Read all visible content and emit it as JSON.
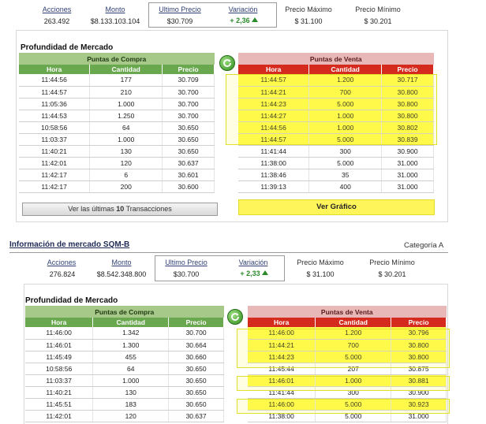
{
  "top": {
    "summary": {
      "labels": [
        "Acciones",
        "Monto",
        "Ultimo Precio",
        "Variación",
        "Precio Máximo",
        "Precio Mínimo"
      ],
      "values": [
        "263.492",
        "$8.133.103.104",
        "$30.709",
        "+ 2,36",
        "$ 31.100",
        "$ 30.201"
      ]
    },
    "depth_title": "Profundidad de Mercado",
    "buy_title": "Puntas de Compra",
    "sell_title": "Puntas de Venta",
    "cols": [
      "Hora",
      "Cantidad",
      "Precio"
    ],
    "buy_rows": [
      [
        "11:44:56",
        "177",
        "30.709"
      ],
      [
        "11:44:57",
        "210",
        "30.700"
      ],
      [
        "11:05:36",
        "1.000",
        "30.700"
      ],
      [
        "11:44:53",
        "1.250",
        "30.700"
      ],
      [
        "10:58:56",
        "64",
        "30.650"
      ],
      [
        "11:03:37",
        "1.000",
        "30.650"
      ],
      [
        "11:40:21",
        "130",
        "30.650"
      ],
      [
        "11:42:01",
        "120",
        "30.637"
      ],
      [
        "11:42:17",
        "6",
        "30.601"
      ],
      [
        "11:42:17",
        "200",
        "30.600"
      ]
    ],
    "sell_rows": [
      [
        "11:44:57",
        "1.200",
        "30.717"
      ],
      [
        "11:44:21",
        "700",
        "30.800"
      ],
      [
        "11:44:23",
        "5.000",
        "30.800"
      ],
      [
        "11:44:27",
        "1.000",
        "30.800"
      ],
      [
        "11:44:56",
        "1.000",
        "30.802"
      ],
      [
        "11:44:57",
        "5.000",
        "30.839"
      ],
      [
        "11:41:44",
        "300",
        "30.900"
      ],
      [
        "11:38:00",
        "5.000",
        "31.000"
      ],
      [
        "11:38:46",
        "35",
        "31.000"
      ],
      [
        "11:39:13",
        "400",
        "31.000"
      ]
    ],
    "btn_trans_pre": "Ver las últimas ",
    "btn_trans_num": "10",
    "btn_trans_post": " Transacciones",
    "btn_graph": "Ver Gráfico"
  },
  "bottom": {
    "info_title": "Información de mercado SQM-B",
    "category": "Categoría A",
    "summary": {
      "labels": [
        "Acciones",
        "Monto",
        "Ultimo Precio",
        "Variación",
        "Precio Máximo",
        "Precio Mínimo"
      ],
      "values": [
        "276.824",
        "$8.542.348.800",
        "$30.700",
        "+ 2,33",
        "$ 31.100",
        "$ 30.201"
      ]
    },
    "depth_title": "Profundidad de Mercado",
    "buy_title": "Puntas de Compra",
    "sell_title": "Puntas de Venta",
    "cols": [
      "Hora",
      "Cantidad",
      "Precio"
    ],
    "buy_rows": [
      [
        "11:46:00",
        "1.342",
        "30.700"
      ],
      [
        "11:46:01",
        "1.300",
        "30.664"
      ],
      [
        "11:45:49",
        "455",
        "30.660"
      ],
      [
        "10:58:56",
        "64",
        "30.650"
      ],
      [
        "11:03:37",
        "1.000",
        "30.650"
      ],
      [
        "11:40:21",
        "130",
        "30.650"
      ],
      [
        "11:45:51",
        "183",
        "30.650"
      ],
      [
        "11:42:01",
        "120",
        "30.637"
      ]
    ],
    "sell_rows": [
      [
        "11:46:00",
        "1.200",
        "30.796"
      ],
      [
        "11:44:21",
        "700",
        "30.800"
      ],
      [
        "11:44:23",
        "5.000",
        "30.800"
      ],
      [
        "11:45:44",
        "207",
        "30.875"
      ],
      [
        "11:46:01",
        "1.000",
        "30.881"
      ],
      [
        "11:41:44",
        "300",
        "30.900"
      ],
      [
        "11:46:00",
        "5.000",
        "30.923"
      ],
      [
        "11:38:00",
        "5.000",
        "31.000"
      ]
    ]
  },
  "colors": {
    "highlight": "#fffb4d",
    "buy_header": "#6aa84f",
    "sell_header": "#d42b1e",
    "variation": "#2a8a2a"
  },
  "icons": [
    "refresh-icon",
    "up-arrow-icon"
  ]
}
